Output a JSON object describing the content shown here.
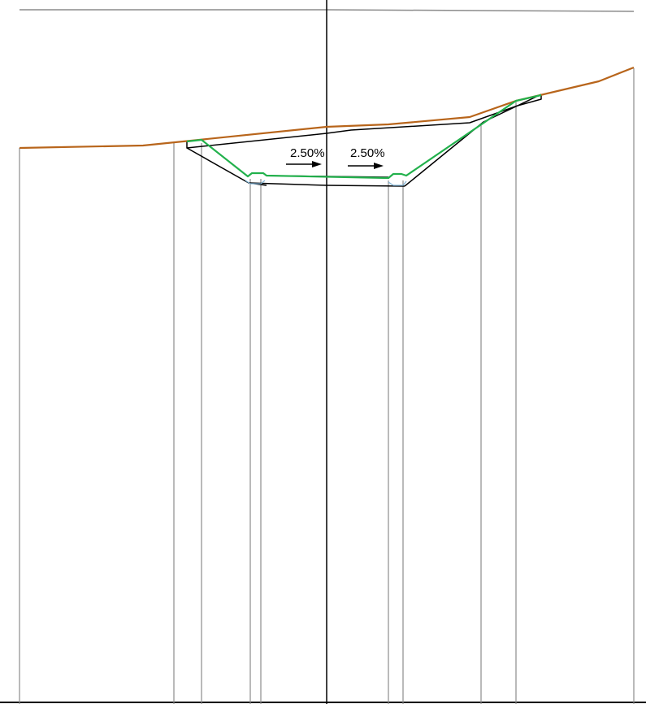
{
  "section": {
    "left_slope_label": "2.50%",
    "right_slope_label": "2.50%"
  },
  "colors": {
    "ground_line": "#b8651b",
    "finished_grade": "#22b14c",
    "design_outline": "#000000",
    "reference_lines": "#8c8c8c",
    "centerline": "#000000",
    "curb_accent": "#7fb3d5"
  }
}
